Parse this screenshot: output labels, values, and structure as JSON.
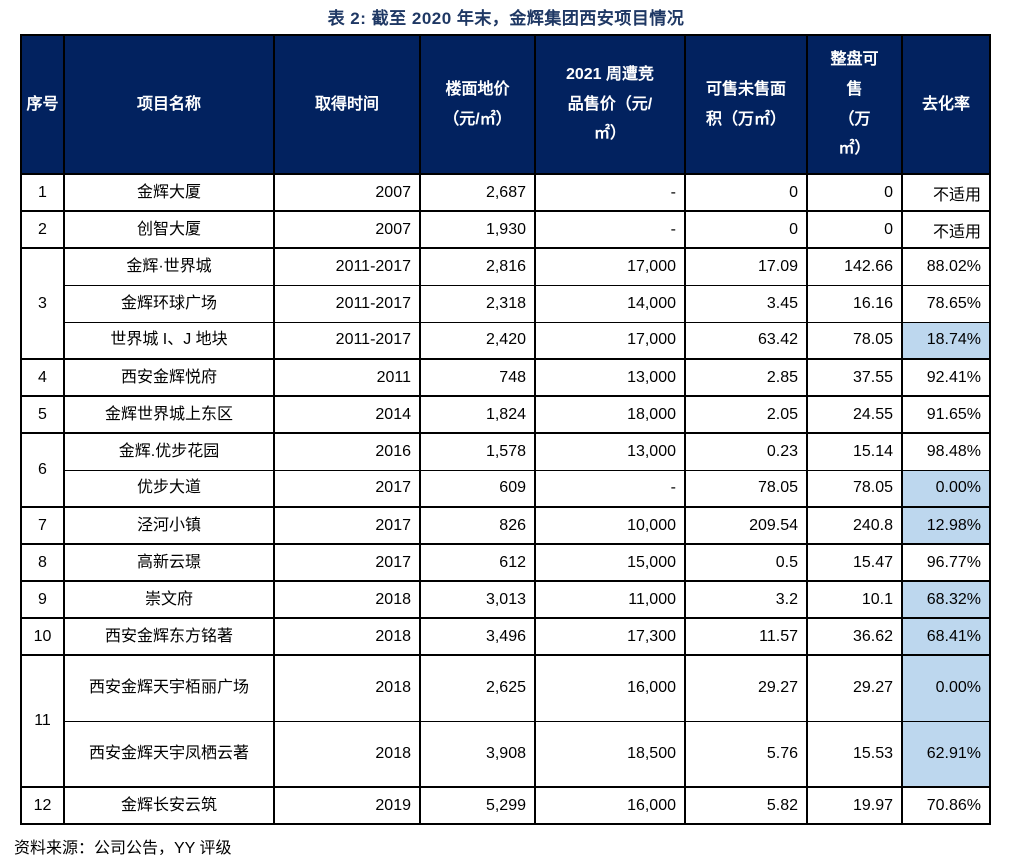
{
  "page": {
    "title": "表 2: 截至 2020 年末，金辉集团西安项目情况",
    "source": "资料来源：公司公告，YY 评级"
  },
  "colors": {
    "header_bg": "#02225F",
    "header_text": "#FFFFFF",
    "title": "#1F3864",
    "highlight_cell": "#BDD7EE",
    "border": "#000000"
  },
  "table": {
    "headers": [
      "序号",
      "项目名称",
      "取得时间",
      "楼面地价\n（元/㎡）",
      "2021 周遭竞\n品售价（元/\n㎡）",
      "可售未售面\n积（万㎡）",
      "整盘可\n售\n（万\n㎡）",
      "去化率"
    ],
    "rows": [
      {
        "no": "1",
        "rowspan": 1,
        "sub": false,
        "tall": false,
        "name": "金辉大厦",
        "acquired": "2007",
        "floor_price": "2,687",
        "comp_price": "-",
        "unsold": "0",
        "total": "0",
        "rate": "不适用",
        "rate_hl": false
      },
      {
        "no": "2",
        "rowspan": 1,
        "sub": false,
        "tall": false,
        "name": "创智大厦",
        "acquired": "2007",
        "floor_price": "1,930",
        "comp_price": "-",
        "unsold": "0",
        "total": "0",
        "rate": "不适用",
        "rate_hl": false
      },
      {
        "no": "3",
        "rowspan": 3,
        "sub": false,
        "tall": false,
        "name": "金辉·世界城",
        "acquired": "2011-2017",
        "floor_price": "2,816",
        "comp_price": "17,000",
        "unsold": "17.09",
        "total": "142.66",
        "rate": "88.02%",
        "rate_hl": false
      },
      {
        "no": null,
        "rowspan": 0,
        "sub": true,
        "tall": false,
        "name": "金辉环球广场",
        "acquired": "2011-2017",
        "floor_price": "2,318",
        "comp_price": "14,000",
        "unsold": "3.45",
        "total": "16.16",
        "rate": "78.65%",
        "rate_hl": false
      },
      {
        "no": null,
        "rowspan": 0,
        "sub": true,
        "tall": false,
        "name": "世界城 I、J 地块",
        "acquired": "2011-2017",
        "floor_price": "2,420",
        "comp_price": "17,000",
        "unsold": "63.42",
        "total": "78.05",
        "rate": "18.74%",
        "rate_hl": true
      },
      {
        "no": "4",
        "rowspan": 1,
        "sub": false,
        "tall": false,
        "name": "西安金辉悦府",
        "acquired": "2011",
        "floor_price": "748",
        "comp_price": "13,000",
        "unsold": "2.85",
        "total": "37.55",
        "rate": "92.41%",
        "rate_hl": false
      },
      {
        "no": "5",
        "rowspan": 1,
        "sub": false,
        "tall": false,
        "name": "金辉世界城上东区",
        "acquired": "2014",
        "floor_price": "1,824",
        "comp_price": "18,000",
        "unsold": "2.05",
        "total": "24.55",
        "rate": "91.65%",
        "rate_hl": false
      },
      {
        "no": "6",
        "rowspan": 2,
        "sub": false,
        "tall": false,
        "name": "金辉.优步花园",
        "acquired": "2016",
        "floor_price": "1,578",
        "comp_price": "13,000",
        "unsold": "0.23",
        "total": "15.14",
        "rate": "98.48%",
        "rate_hl": false
      },
      {
        "no": null,
        "rowspan": 0,
        "sub": true,
        "tall": false,
        "name": "优步大道",
        "acquired": "2017",
        "floor_price": "609",
        "comp_price": "-",
        "unsold": "78.05",
        "total": "78.05",
        "rate": "0.00%",
        "rate_hl": true
      },
      {
        "no": "7",
        "rowspan": 1,
        "sub": false,
        "tall": false,
        "name": "泾河小镇",
        "acquired": "2017",
        "floor_price": "826",
        "comp_price": "10,000",
        "unsold": "209.54",
        "total": "240.8",
        "rate": "12.98%",
        "rate_hl": true
      },
      {
        "no": "8",
        "rowspan": 1,
        "sub": false,
        "tall": false,
        "name": "高新云璟",
        "acquired": "2017",
        "floor_price": "612",
        "comp_price": "15,000",
        "unsold": "0.5",
        "total": "15.47",
        "rate": "96.77%",
        "rate_hl": false
      },
      {
        "no": "9",
        "rowspan": 1,
        "sub": false,
        "tall": false,
        "name": "崇文府",
        "acquired": "2018",
        "floor_price": "3,013",
        "comp_price": "11,000",
        "unsold": "3.2",
        "total": "10.1",
        "rate": "68.32%",
        "rate_hl": true
      },
      {
        "no": "10",
        "rowspan": 1,
        "sub": false,
        "tall": false,
        "name": "西安金辉东方铭著",
        "acquired": "2018",
        "floor_price": "3,496",
        "comp_price": "17,300",
        "unsold": "11.57",
        "total": "36.62",
        "rate": "68.41%",
        "rate_hl": true
      },
      {
        "no": "11",
        "rowspan": 2,
        "sub": false,
        "tall": true,
        "name": "西安金辉天宇栢丽广场",
        "acquired": "2018",
        "floor_price": "2,625",
        "comp_price": "16,000",
        "unsold": "29.27",
        "total": "29.27",
        "rate": "0.00%",
        "rate_hl": true
      },
      {
        "no": null,
        "rowspan": 0,
        "sub": true,
        "tall": true,
        "name": "西安金辉天宇凤栖云著",
        "acquired": "2018",
        "floor_price": "3,908",
        "comp_price": "18,500",
        "unsold": "5.76",
        "total": "15.53",
        "rate": "62.91%",
        "rate_hl": true
      },
      {
        "no": "12",
        "rowspan": 1,
        "sub": false,
        "tall": false,
        "name": "金辉长安云筑",
        "acquired": "2019",
        "floor_price": "5,299",
        "comp_price": "16,000",
        "unsold": "5.82",
        "total": "19.97",
        "rate": "70.86%",
        "rate_hl": false
      }
    ]
  }
}
